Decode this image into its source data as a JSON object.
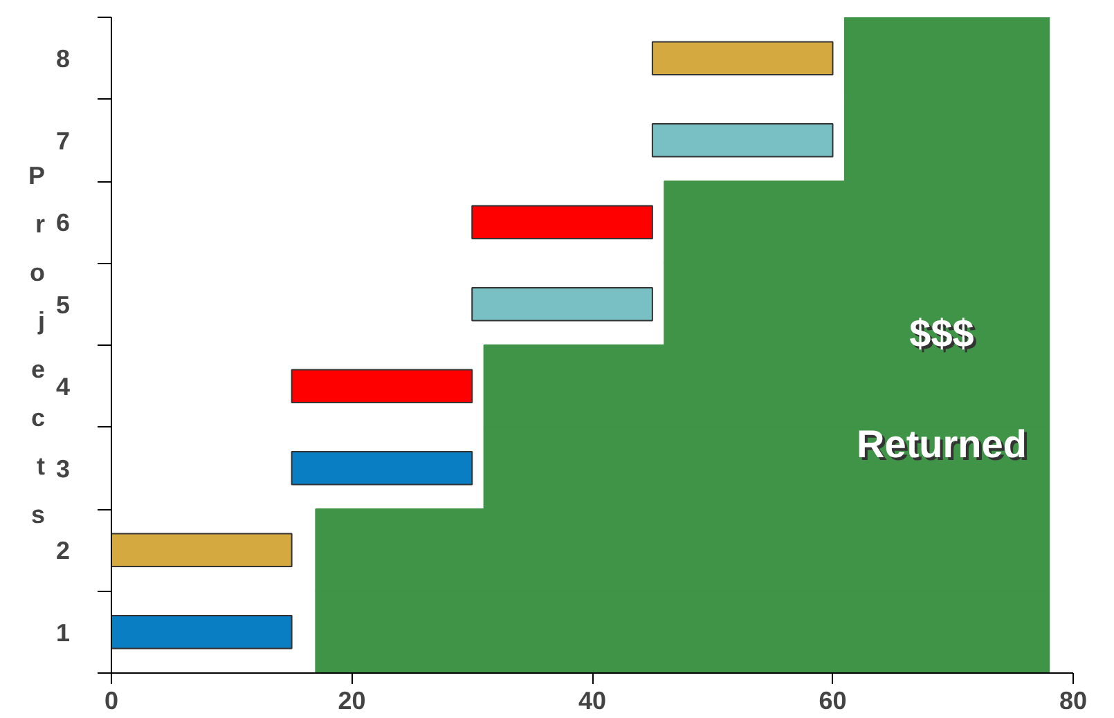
{
  "chart_data": {
    "type": "bar",
    "orientation": "horizontal",
    "ylabel": "Projects",
    "categories": [
      "8",
      "7",
      "6",
      "5",
      "4",
      "3",
      "2",
      "1"
    ],
    "values": [
      15,
      15,
      15,
      15,
      15,
      15,
      15,
      15
    ],
    "base": [
      45,
      45,
      30,
      30,
      15,
      15,
      0,
      0
    ],
    "colors": [
      "#d4aa40",
      "#78c0c4",
      "#ff0000",
      "#78c0c4",
      "#ff0000",
      "#0a7ec2",
      "#d4aa40",
      "#0a7ec2"
    ],
    "series": [
      {
        "type": "bar",
        "color": "#3f9447",
        "base": [
          61,
          61,
          46,
          46,
          31,
          31,
          17,
          17
        ],
        "values": [
          17,
          17,
          32,
          32,
          47,
          47,
          61,
          61
        ]
      }
    ],
    "xlim": [
      0,
      80
    ],
    "xticks": [
      0,
      20,
      40,
      60,
      80
    ],
    "annotations": [
      "$$$",
      "Returned"
    ]
  }
}
